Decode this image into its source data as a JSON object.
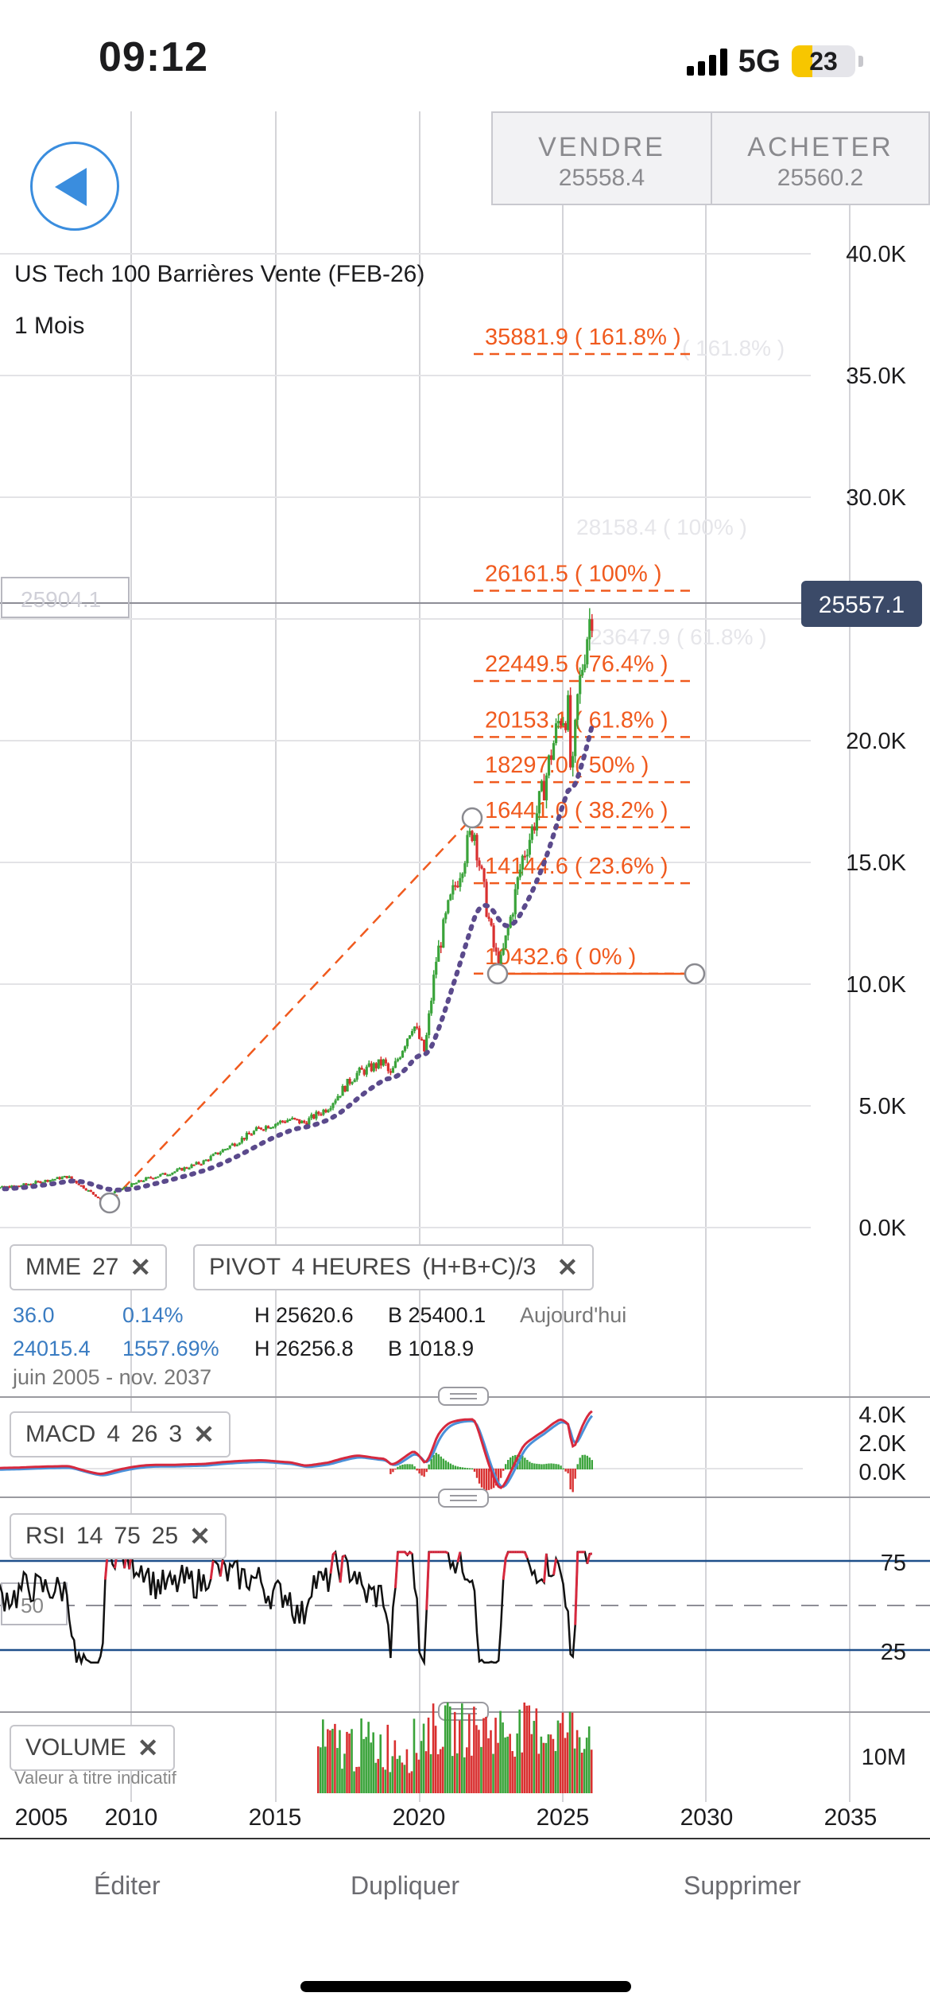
{
  "status_bar": {
    "time": "09:12",
    "network": "5G",
    "battery": "23"
  },
  "header": {
    "sell_label": "VENDRE",
    "sell_value": "25558.4",
    "buy_label": "ACHETER",
    "buy_value": "25560.2",
    "back_icon": "back-arrow-icon"
  },
  "chart": {
    "title": "US Tech 100 Barrières Vente (FEB-26)",
    "period": "1 Mois",
    "current_price": "25557.1",
    "ghost_price": "25904.1",
    "y_ticks": [
      "40.0K",
      "35.0K",
      "30.0K",
      "20.0K",
      "15.0K",
      "10.0K",
      "5.0K",
      "0.0K"
    ],
    "x_ticks": [
      "2005",
      "2010",
      "2015",
      "2020",
      "2025",
      "2030",
      "2035"
    ],
    "fibonacci": [
      {
        "label": "35881.9 ( 161.8% )"
      },
      {
        "label": "26161.5 ( 100% )"
      },
      {
        "label": "22449.5 ( 76.4% )"
      },
      {
        "label": "20153.1 ( 61.8% )"
      },
      {
        "label": "18297.0 ( 50% )"
      },
      {
        "label": "16441.0 ( 38.2% )"
      },
      {
        "label": "14144.6 ( 23.6% )"
      },
      {
        "label": "10432.6 ( 0% )"
      }
    ],
    "fib_ghost": [
      "28158.4 ( 100% )",
      "23647.9 ( 61.8% )",
      "( 161.8% )"
    ],
    "colors": {
      "up": "#3aa33a",
      "down": "#d93030",
      "fib": "#f05a1e",
      "ema": "#5b4a8c",
      "price_tag": "#3b4a68"
    }
  },
  "indicators": {
    "mme": {
      "name": "MME",
      "period": "27",
      "close": "✕"
    },
    "pivot": {
      "name": "PIVOT",
      "timeframe": "4 HEURES",
      "formula": "(H+B+C)/3",
      "close": "✕"
    },
    "stats_row1": {
      "a": "36.0",
      "b": "0.14%",
      "h": "H 25620.6",
      "l": "B 25400.1",
      "when": "Aujourd'hui"
    },
    "stats_row2": {
      "a": "24015.4",
      "b": "1557.69%",
      "h": "H 26256.8",
      "l": "B 1018.9"
    },
    "range": "juin 2005 - nov. 2037",
    "macd": {
      "name": "MACD",
      "p1": "4",
      "p2": "26",
      "p3": "3",
      "close": "✕",
      "ticks": [
        "4.0K",
        "2.0K",
        "0.0K"
      ]
    },
    "rsi": {
      "name": "RSI",
      "p1": "14",
      "p2": "75",
      "p3": "25",
      "close": "✕",
      "ticks": [
        "75",
        "25"
      ],
      "mid": "50"
    },
    "volume": {
      "name": "VOLUME",
      "close": "✕",
      "note": "Valeur à titre indicatif",
      "tick": "10M"
    }
  },
  "bottom_bar": {
    "edit": "Éditer",
    "duplicate": "Dupliquer",
    "delete": "Supprimer"
  }
}
